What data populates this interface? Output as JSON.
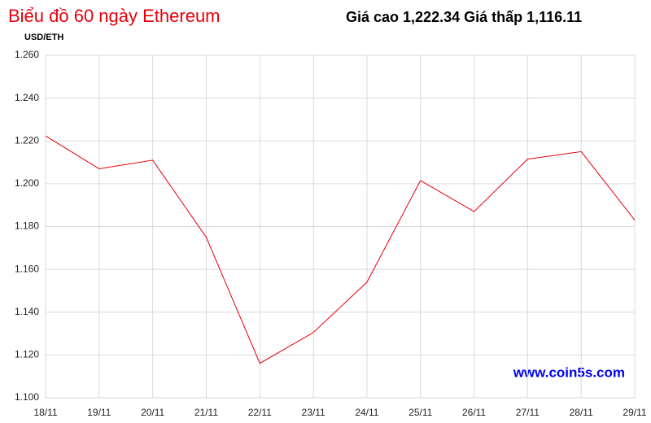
{
  "chart_data": {
    "type": "line",
    "title": "Biểu đồ 60 ngày Ethereum",
    "subtitle": "Giá cao 1,222.34 Giá thấp 1,116.11",
    "y_label": "USD/ETH",
    "watermark": "www.coin5s.com",
    "categories": [
      "18/11",
      "19/11",
      "20/11",
      "21/11",
      "22/11",
      "23/11",
      "24/11",
      "25/11",
      "26/11",
      "27/11",
      "28/11",
      "29/11"
    ],
    "series": [
      {
        "name": "Ethereum",
        "color": "#e8000b",
        "values": [
          1222.34,
          1207,
          1211,
          1175,
          1116.11,
          1130.5,
          1154,
          1201.5,
          1187,
          1211.5,
          1215,
          1183
        ]
      }
    ],
    "ylim": [
      1100,
      1260
    ],
    "yticks": [
      {
        "value": 1100,
        "label": "1.100"
      },
      {
        "value": 1120,
        "label": "1.120"
      },
      {
        "value": 1140,
        "label": "1.140"
      },
      {
        "value": 1160,
        "label": "1.160"
      },
      {
        "value": 1180,
        "label": "1.180"
      },
      {
        "value": 1200,
        "label": "1.200"
      },
      {
        "value": 1220,
        "label": "1.220"
      },
      {
        "value": 1240,
        "label": "1.240"
      },
      {
        "value": 1260,
        "label": "1.260"
      }
    ],
    "grid": true
  }
}
